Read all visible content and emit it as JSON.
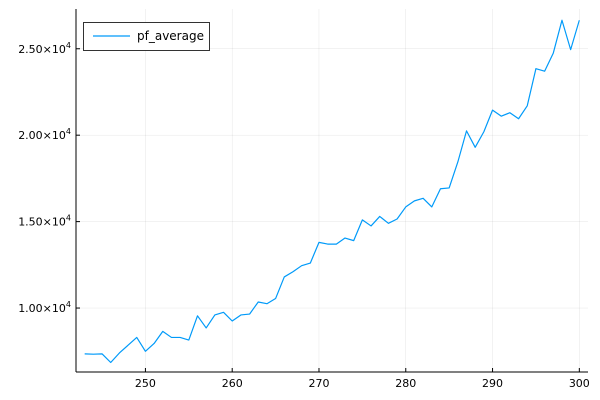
{
  "chart_data": {
    "type": "line",
    "title": "",
    "xlabel": "",
    "ylabel": "",
    "xlim": [
      242.0,
      301.0
    ],
    "ylim": [
      6300,
      27300
    ],
    "grid": true,
    "legend_position": "top-left",
    "x_ticks": [
      250,
      260,
      270,
      280,
      290,
      300
    ],
    "x_tick_labels": [
      "250",
      "260",
      "270",
      "280",
      "290",
      "300"
    ],
    "y_ticks": [
      10000,
      15000,
      20000,
      25000
    ],
    "y_tick_labels": [
      {
        "mantissa": "1.00",
        "exp": "4"
      },
      {
        "mantissa": "1.50",
        "exp": "4"
      },
      {
        "mantissa": "2.00",
        "exp": "4"
      },
      {
        "mantissa": "2.50",
        "exp": "4"
      }
    ],
    "series": [
      {
        "name": "pf_average",
        "color": "#009af9",
        "x": [
          243,
          244,
          245,
          246,
          247,
          248,
          249,
          250,
          251,
          252,
          253,
          254,
          255,
          256,
          257,
          258,
          259,
          260,
          261,
          262,
          263,
          264,
          265,
          266,
          267,
          268,
          269,
          270,
          271,
          272,
          273,
          274,
          275,
          276,
          277,
          278,
          279,
          280,
          281,
          282,
          283,
          284,
          285,
          286,
          287,
          288,
          289,
          290,
          291,
          292,
          293,
          294,
          295,
          296,
          297,
          298,
          299,
          300
        ],
        "y": [
          7350,
          7330,
          7350,
          6850,
          7400,
          7850,
          8300,
          7500,
          7950,
          8650,
          8300,
          8300,
          8150,
          9550,
          8850,
          9600,
          9750,
          9250,
          9600,
          9650,
          10350,
          10250,
          10550,
          11800,
          12100,
          12450,
          12600,
          13800,
          13700,
          13700,
          14050,
          13900,
          15100,
          14750,
          15300,
          14900,
          15150,
          15850,
          16200,
          16350,
          15850,
          16900,
          16950,
          18450,
          20250,
          19300,
          20200,
          21450,
          21100,
          21300,
          20950,
          21700,
          23850,
          23700,
          24750,
          26650,
          24950,
          26650
        ]
      }
    ]
  }
}
